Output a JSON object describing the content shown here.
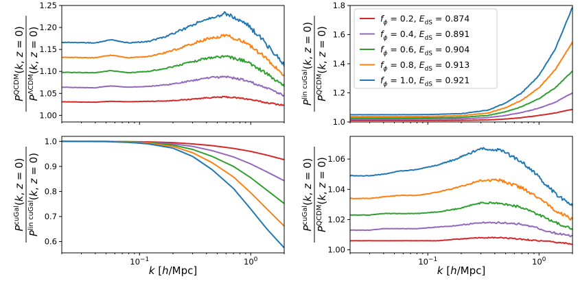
{
  "chart_data": [
    {
      "type": "line",
      "panel": "top-left",
      "xscale": "log",
      "xlim": [
        0.02,
        2.0
      ],
      "ylim": [
        0.985,
        1.25
      ],
      "yticks": [
        1.0,
        1.05,
        1.1,
        1.15,
        1.2,
        1.25
      ],
      "ytick_labels": [
        "1.00",
        "1.05",
        "1.10",
        "1.15",
        "1.20",
        "1.25"
      ],
      "xtick_labels": [],
      "ylabel": {
        "num_sup": "QCDM",
        "den_sup": "ΛCDM",
        "args": "(k, z = 0)"
      },
      "xlabel": "",
      "shape": "bump",
      "noise": 0.0035,
      "x": [
        0.02,
        0.04,
        0.055,
        0.08,
        0.12,
        0.18,
        0.27,
        0.4,
        0.6,
        0.9,
        1.3,
        2.0
      ],
      "series": [
        {
          "name": "f_phi=0.2",
          "color": "#d62728",
          "values": [
            1.031,
            1.03,
            1.032,
            1.031,
            1.032,
            1.033,
            1.036,
            1.04,
            1.042,
            1.038,
            1.03,
            1.023
          ]
        },
        {
          "name": "f_phi=0.4",
          "color": "#9467bd",
          "values": [
            1.064,
            1.063,
            1.067,
            1.064,
            1.066,
            1.07,
            1.077,
            1.085,
            1.088,
            1.08,
            1.065,
            1.045
          ]
        },
        {
          "name": "f_phi=0.6",
          "color": "#2ca02c",
          "values": [
            1.098,
            1.097,
            1.102,
            1.097,
            1.1,
            1.108,
            1.119,
            1.13,
            1.135,
            1.123,
            1.1,
            1.067
          ]
        },
        {
          "name": "f_phi=0.8",
          "color": "#ff7f0e",
          "values": [
            1.132,
            1.131,
            1.137,
            1.131,
            1.134,
            1.144,
            1.159,
            1.174,
            1.182,
            1.166,
            1.135,
            1.09
          ]
        },
        {
          "name": "f_phi=1.0",
          "color": "#1f77b4",
          "values": [
            1.166,
            1.165,
            1.172,
            1.165,
            1.168,
            1.181,
            1.2,
            1.22,
            1.232,
            1.21,
            1.17,
            1.114
          ]
        }
      ]
    },
    {
      "type": "line",
      "panel": "top-right",
      "xscale": "log",
      "xlim": [
        0.02,
        2.0
      ],
      "ylim": [
        1.0,
        1.8
      ],
      "yticks": [
        1.0,
        1.2,
        1.4,
        1.6,
        1.8
      ],
      "ytick_labels": [
        "1.0",
        "1.2",
        "1.4",
        "1.6",
        "1.8"
      ],
      "xtick_labels": [],
      "ylabel": {
        "num_sup": "lin cuGal",
        "den_sup": "QCDM",
        "args": "(k, z = 0)"
      },
      "xlabel": "",
      "shape": "rise",
      "noise": 0.002,
      "x": [
        0.02,
        0.05,
        0.1,
        0.2,
        0.35,
        0.5,
        0.7,
        1.0,
        1.4,
        2.0
      ],
      "series": [
        {
          "name": "f_phi=0.2",
          "color": "#d62728",
          "values": [
            1.01,
            1.01,
            1.01,
            1.011,
            1.014,
            1.02,
            1.03,
            1.045,
            1.062,
            1.087
          ]
        },
        {
          "name": "f_phi=0.4",
          "color": "#9467bd",
          "values": [
            1.019,
            1.019,
            1.02,
            1.022,
            1.03,
            1.045,
            1.065,
            1.095,
            1.135,
            1.2
          ]
        },
        {
          "name": "f_phi=0.6",
          "color": "#2ca02c",
          "values": [
            1.027,
            1.027,
            1.028,
            1.032,
            1.045,
            1.07,
            1.105,
            1.16,
            1.235,
            1.35
          ]
        },
        {
          "name": "f_phi=0.8",
          "color": "#ff7f0e",
          "values": [
            1.037,
            1.037,
            1.038,
            1.043,
            1.062,
            1.098,
            1.15,
            1.235,
            1.36,
            1.55
          ]
        },
        {
          "name": "f_phi=1.0",
          "color": "#1f77b4",
          "values": [
            1.05,
            1.05,
            1.051,
            1.057,
            1.082,
            1.13,
            1.2,
            1.32,
            1.5,
            1.79
          ]
        }
      ],
      "legend": {
        "position": "upper-left",
        "entries": [
          {
            "f": "0.2",
            "E": "0.874",
            "color": "#d62728"
          },
          {
            "f": "0.4",
            "E": "0.891",
            "color": "#9467bd"
          },
          {
            "f": "0.6",
            "E": "0.904",
            "color": "#2ca02c"
          },
          {
            "f": "0.8",
            "E": "0.913",
            "color": "#ff7f0e"
          },
          {
            "f": "1.0",
            "E": "0.921",
            "color": "#1f77b4"
          }
        ]
      }
    },
    {
      "type": "line",
      "panel": "bottom-left",
      "xscale": "log",
      "xlim": [
        0.02,
        2.0
      ],
      "ylim": [
        0.555,
        1.02
      ],
      "yticks": [
        0.6,
        0.7,
        0.8,
        0.9,
        1.0
      ],
      "ytick_labels": [
        "0.6",
        "0.7",
        "0.8",
        "0.9",
        "1.0"
      ],
      "xtick_labels": [
        {
          "x": 0.1,
          "base": "10",
          "exp": "−1"
        },
        {
          "x": 1.0,
          "base": "10",
          "exp": "0"
        }
      ],
      "ylabel": {
        "num_sup": "cuGal",
        "den_sup": "lin cuGal",
        "args": "(k, z = 0)"
      },
      "xlabel": "k [h/Mpc]",
      "shape": "fall",
      "noise": 0,
      "x": [
        0.02,
        0.05,
        0.08,
        0.12,
        0.2,
        0.3,
        0.45,
        0.7,
        1.0,
        1.4,
        2.0
      ],
      "series": [
        {
          "name": "f_phi=0.2",
          "color": "#d62728",
          "values": [
            1.0,
            1.0,
            0.999,
            0.998,
            0.995,
            0.99,
            0.983,
            0.972,
            0.96,
            0.945,
            0.927
          ]
        },
        {
          "name": "f_phi=0.4",
          "color": "#9467bd",
          "values": [
            1.0,
            1.0,
            0.998,
            0.996,
            0.99,
            0.98,
            0.963,
            0.938,
            0.91,
            0.878,
            0.843
          ]
        },
        {
          "name": "f_phi=0.6",
          "color": "#2ca02c",
          "values": [
            1.0,
            1.0,
            0.998,
            0.995,
            0.985,
            0.968,
            0.94,
            0.9,
            0.855,
            0.805,
            0.752
          ]
        },
        {
          "name": "f_phi=0.8",
          "color": "#ff7f0e",
          "values": [
            1.0,
            1.0,
            0.997,
            0.993,
            0.98,
            0.955,
            0.915,
            0.858,
            0.795,
            0.73,
            0.662
          ]
        },
        {
          "name": "f_phi=1.0",
          "color": "#1f77b4",
          "values": [
            1.0,
            0.999,
            0.996,
            0.99,
            0.973,
            0.94,
            0.887,
            0.812,
            0.73,
            0.65,
            0.575
          ]
        }
      ]
    },
    {
      "type": "line",
      "panel": "bottom-right",
      "xscale": "log",
      "xlim": [
        0.02,
        2.0
      ],
      "ylim": [
        0.998,
        1.075
      ],
      "yticks": [
        1.0,
        1.02,
        1.04,
        1.06
      ],
      "ytick_labels": [
        "1.00",
        "1.02",
        "1.04",
        "1.06"
      ],
      "xtick_labels": [
        {
          "x": 0.1,
          "base": "10",
          "exp": "−1"
        },
        {
          "x": 1.0,
          "base": "10",
          "exp": "0"
        }
      ],
      "ylabel": {
        "num_sup": "cuGal",
        "den_sup": "QCDM",
        "args": "(k, z = 0)"
      },
      "xlabel": "k [h/Mpc]",
      "shape": "bump",
      "noise": 0.0009,
      "x": [
        0.02,
        0.03,
        0.04,
        0.055,
        0.08,
        0.12,
        0.18,
        0.3,
        0.45,
        0.7,
        1.0,
        1.4,
        2.0
      ],
      "series": [
        {
          "name": "f_phi=0.2",
          "color": "#d62728",
          "values": [
            1.006,
            1.006,
            1.006,
            1.006,
            1.006,
            1.006,
            1.007,
            1.008,
            1.008,
            1.007,
            1.006,
            1.005,
            1.004
          ]
        },
        {
          "name": "f_phi=0.4",
          "color": "#9467bd",
          "values": [
            1.013,
            1.013,
            1.014,
            1.014,
            1.014,
            1.015,
            1.016,
            1.018,
            1.018,
            1.017,
            1.014,
            1.011,
            1.009
          ]
        },
        {
          "name": "f_phi=0.6",
          "color": "#2ca02c",
          "values": [
            1.023,
            1.023,
            1.024,
            1.024,
            1.024,
            1.025,
            1.027,
            1.031,
            1.031,
            1.028,
            1.023,
            1.018,
            1.014
          ]
        },
        {
          "name": "f_phi=0.8",
          "color": "#ff7f0e",
          "values": [
            1.034,
            1.034,
            1.035,
            1.036,
            1.036,
            1.038,
            1.041,
            1.046,
            1.046,
            1.041,
            1.034,
            1.026,
            1.02
          ]
        },
        {
          "name": "f_phi=1.0",
          "color": "#1f77b4",
          "values": [
            1.049,
            1.049,
            1.05,
            1.052,
            1.053,
            1.056,
            1.06,
            1.067,
            1.066,
            1.058,
            1.048,
            1.037,
            1.03
          ]
        }
      ]
    }
  ]
}
